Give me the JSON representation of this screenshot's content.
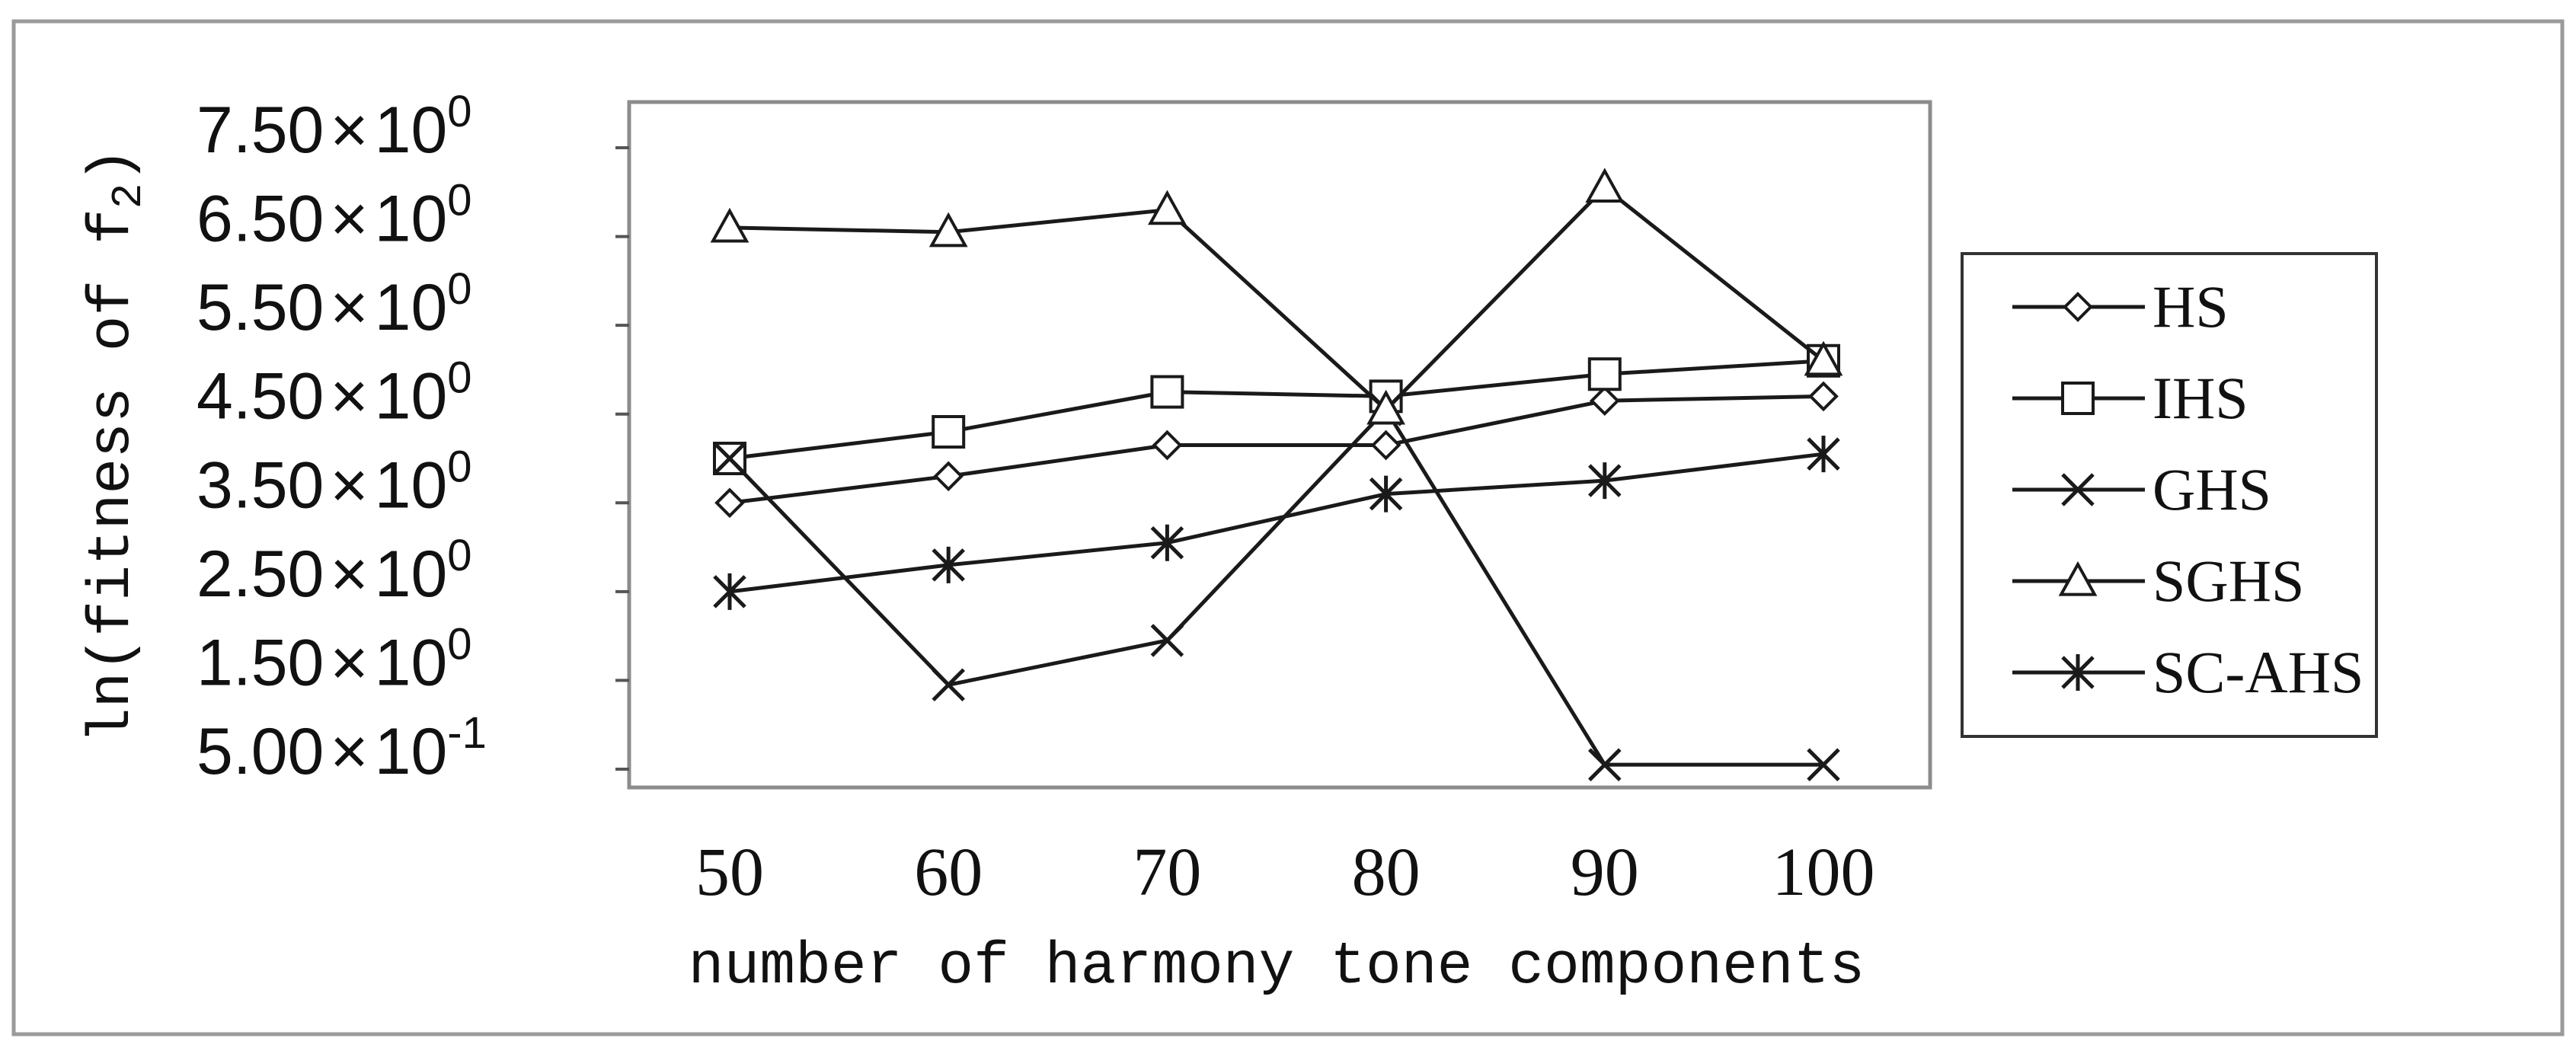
{
  "chart_data": {
    "type": "line",
    "title": "",
    "xlabel": "number of harmony tone components",
    "ylabel_main": "ln(fitness of f",
    "ylabel_sub": "2",
    "ylabel_close": ")",
    "categories": [
      "50",
      "60",
      "70",
      "80",
      "90",
      "100"
    ],
    "yticks": [
      {
        "value": 7.5,
        "mant": "7.50",
        "exp": "0"
      },
      {
        "value": 6.5,
        "mant": "6.50",
        "exp": "0"
      },
      {
        "value": 5.5,
        "mant": "5.50",
        "exp": "0"
      },
      {
        "value": 4.5,
        "mant": "4.50",
        "exp": "0"
      },
      {
        "value": 3.5,
        "mant": "3.50",
        "exp": "0"
      },
      {
        "value": 2.5,
        "mant": "2.50",
        "exp": "0"
      },
      {
        "value": 1.5,
        "mant": "1.50",
        "exp": "0"
      },
      {
        "value": 0.5,
        "mant": "5.00",
        "exp": "-1"
      }
    ],
    "ylim": [
      0.3,
      7.8
    ],
    "grid": false,
    "legend_position": "right",
    "series": [
      {
        "name": "HS",
        "marker": "diamond",
        "values": [
          3.5,
          3.8,
          4.15,
          4.15,
          4.65,
          4.7
        ]
      },
      {
        "name": "IHS",
        "marker": "square",
        "values": [
          4.0,
          4.3,
          4.75,
          4.7,
          4.95,
          5.1
        ]
      },
      {
        "name": "GHS",
        "marker": "x",
        "values": [
          4.0,
          1.45,
          1.95,
          4.55,
          0.55,
          0.55
        ]
      },
      {
        "name": "SGHS",
        "marker": "triangle",
        "values": [
          6.6,
          6.55,
          6.8,
          4.55,
          7.05,
          5.1
        ]
      },
      {
        "name": "SC-AHS",
        "marker": "asterisk",
        "values": [
          2.5,
          2.8,
          3.05,
          3.6,
          3.75,
          4.05
        ]
      }
    ],
    "colors": {
      "line": "#1a1a1a",
      "frame": "#8c8c8c",
      "background": "#ffffff"
    }
  }
}
